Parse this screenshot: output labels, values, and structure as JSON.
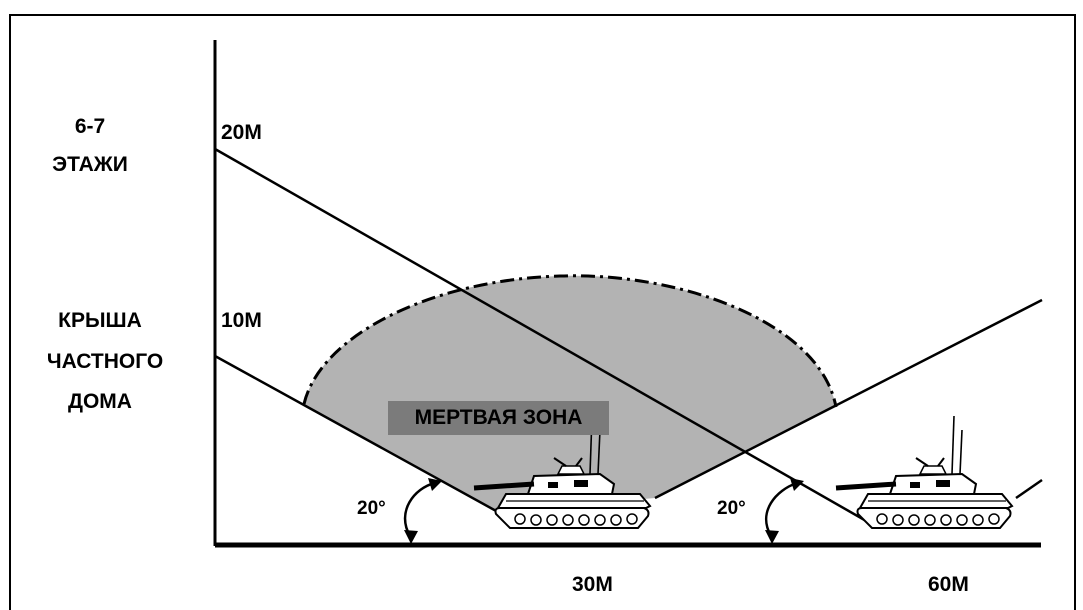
{
  "left_labels": {
    "floors_number": "6-7",
    "floors_word": "ЭТАЖИ",
    "roof_line1": "КРЫША",
    "roof_line2": "ЧАСТНОГО",
    "roof_line3": "ДОМА"
  },
  "heights": {
    "high": "20М",
    "low": "10М"
  },
  "distances": {
    "near": "30М",
    "far": "60М"
  },
  "angles": {
    "first": "20°",
    "second": "20°"
  },
  "zone": {
    "label": "МЕРТВАЯ ЗОНА",
    "fill_color": "#b3b3b3"
  },
  "icons": {
    "vehicle": "tank-icon",
    "angle_arrow": "curved-double-arrow-icon"
  }
}
